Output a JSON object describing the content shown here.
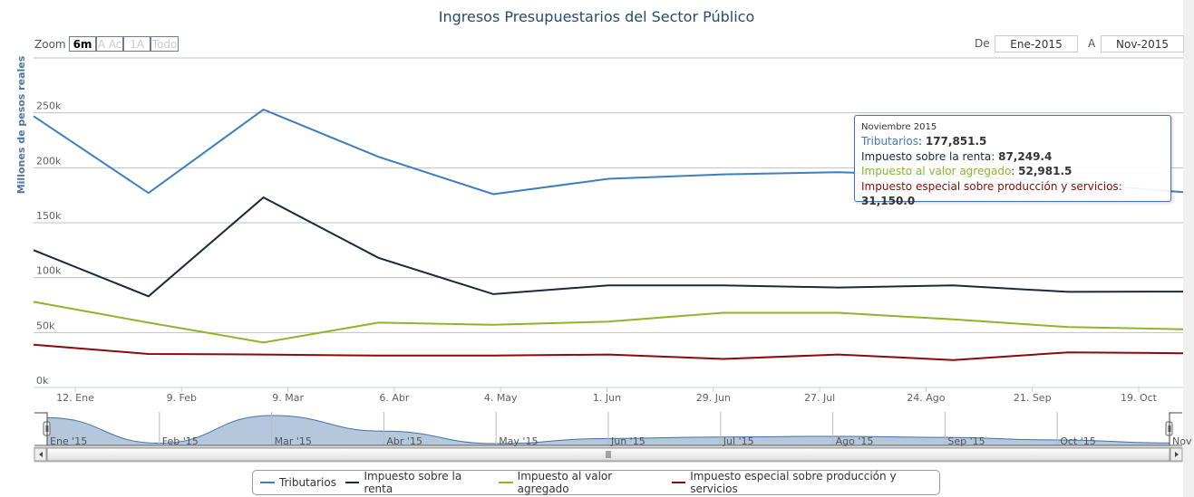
{
  "chart_data": {
    "type": "line",
    "title": "Ingresos Presupuestarios del Sector Público",
    "ylabel": "Millones de pesos reales",
    "xlabel": "",
    "ylim": [
      0,
      300000
    ],
    "y_ticks": [
      "0k",
      "50k",
      "100k",
      "150k",
      "200k",
      "250k"
    ],
    "x_ticks": [
      "12. Ene",
      "9. Feb",
      "9. Mar",
      "6. Abr",
      "4. May",
      "1. Jun",
      "29. Jun",
      "27. Jul",
      "24. Ago",
      "21. Sep",
      "19. Oct"
    ],
    "x": [
      "2015-01",
      "2015-02",
      "2015-03",
      "2015-04",
      "2015-05",
      "2015-06",
      "2015-07",
      "2015-08",
      "2015-09",
      "2015-10",
      "2015-11"
    ],
    "grid": true,
    "legend_position": "bottom",
    "series": [
      {
        "name": "Tributarios",
        "color": "#3d7ebf",
        "values": [
          247000,
          177000,
          253000,
          210000,
          176000,
          190000,
          194000,
          196000,
          193000,
          186000,
          177851.5
        ]
      },
      {
        "name": "Impuesto sobre la renta",
        "color": "#1a2a3a",
        "values": [
          125000,
          83000,
          173000,
          118000,
          85000,
          93000,
          93000,
          91000,
          93000,
          87000,
          87249.4
        ]
      },
      {
        "name": "Impuesto al valor agregado",
        "color": "#8db52a",
        "values": [
          78000,
          59000,
          41000,
          59000,
          57000,
          60000,
          68000,
          68000,
          62000,
          55000,
          52981.5
        ]
      },
      {
        "name": "Impuesto especial sobre producción y servicios",
        "color": "#8b0a0a",
        "values": [
          39000,
          30500,
          30000,
          29000,
          29000,
          30000,
          26000,
          30000,
          25000,
          32000,
          31150.0
        ]
      }
    ],
    "tooltip": {
      "header": "Noviembre 2015",
      "rows": [
        {
          "label": "Tributarios",
          "value": "177,851.5"
        },
        {
          "label": "Impuesto sobre la renta",
          "value": "87,249.4"
        },
        {
          "label": "Impuesto al valor agregado",
          "value": "52,981.5"
        },
        {
          "label": "Impuesto especial sobre producción y servicios",
          "value": "31,150.0"
        }
      ]
    },
    "navigator": {
      "labels": [
        "Ene '15",
        "Feb '15",
        "Mar '15",
        "Abr '15",
        "May '15",
        "Jun '15",
        "Jul '15",
        "Ago '15",
        "Sep '15",
        "Oct '15",
        "Nov"
      ]
    }
  },
  "range_selector": {
    "zoom_label": "Zoom",
    "buttons": [
      "6m",
      "A Ac",
      "1A",
      "Todo"
    ],
    "active": "6m",
    "from_label": "De",
    "from_value": "Ene-2015",
    "to_label": "A",
    "to_value": "Nov-2015"
  }
}
